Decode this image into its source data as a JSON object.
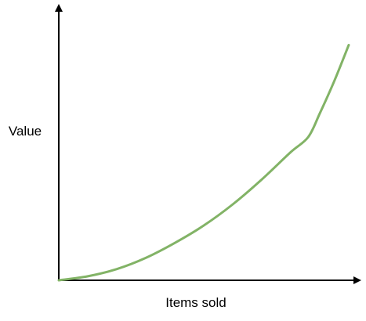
{
  "chart_data": {
    "type": "line",
    "title": "",
    "xlabel": "Items sold",
    "ylabel": "Value",
    "grid": false,
    "ticks": false,
    "xlim": [
      0,
      100
    ],
    "ylim": [
      0,
      100
    ],
    "series": [
      {
        "color": "#82b366",
        "points": [
          [
            0,
            0
          ],
          [
            10,
            1.6
          ],
          [
            20,
            4.5
          ],
          [
            30,
            9.0
          ],
          [
            40,
            15.0
          ],
          [
            50,
            22.0
          ],
          [
            60,
            30.5
          ],
          [
            70,
            40.5
          ],
          [
            80,
            51.5
          ],
          [
            86,
            57.5
          ],
          [
            90,
            67.0
          ],
          [
            95,
            80.0
          ],
          [
            100,
            94.5
          ]
        ]
      }
    ],
    "axis_color": "#000000"
  }
}
